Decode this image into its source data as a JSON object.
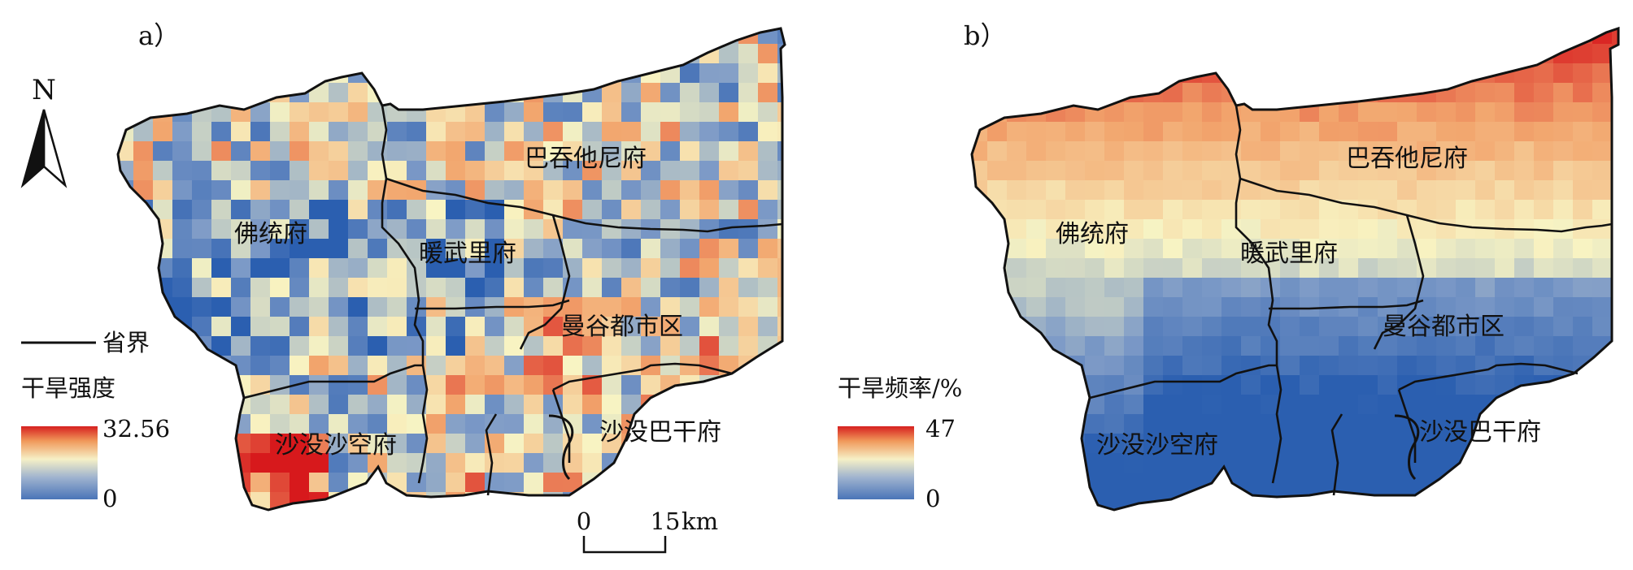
{
  "panels": [
    {
      "id": "a",
      "label": "a）",
      "legend_title": "干旱强度",
      "legend_max": "32.56",
      "legend_min": "0",
      "pattern": "intensity"
    },
    {
      "id": "b",
      "label": "b）",
      "legend_title": "干旱频率/%",
      "legend_max": "47",
      "legend_min": "0",
      "pattern": "frequency"
    }
  ],
  "regions": {
    "bassac": "巴吞他尼府",
    "futong": "佛统府",
    "nuanwuli": "暖武里府",
    "bangkok": "曼谷都市区",
    "samutsakhon": "沙没沙空府",
    "samutprakan": "沙没巴干府"
  },
  "north_arrow": "N",
  "boundary_legend": "省界",
  "scale_bar": {
    "start": "0",
    "end": "15",
    "unit": "km"
  },
  "color_ramp": [
    "#2b5fb0",
    "#7e9bc7",
    "#f8f4c3",
    "#f2a56d",
    "#d7191c"
  ]
}
